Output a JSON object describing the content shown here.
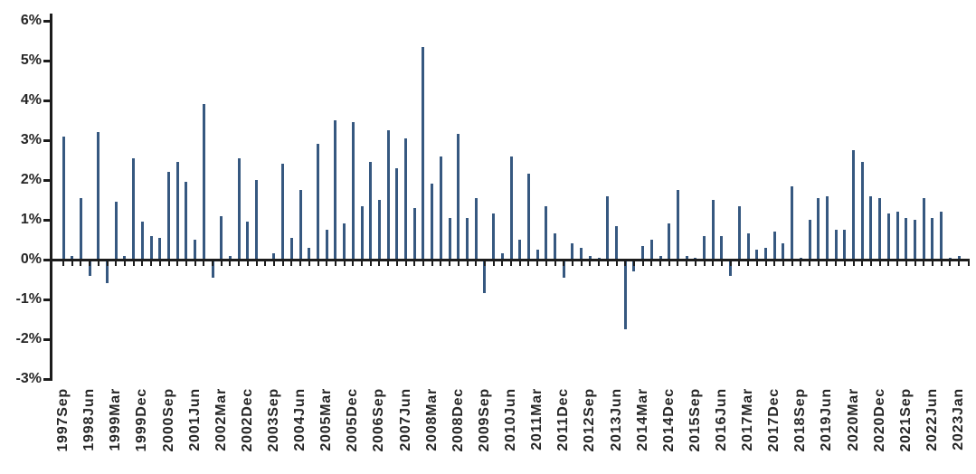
{
  "chart_data": {
    "type": "bar",
    "title": "",
    "xlabel": "",
    "ylabel": "",
    "ylim": [
      -3,
      6
    ],
    "gridlines": false,
    "legend": null,
    "background": "#FFFFFF",
    "bar_color": "#365880",
    "axis_color": "#1C1C1C",
    "text_color": "#262626",
    "y_tick_values": [
      6,
      5,
      4,
      3,
      2,
      1,
      0,
      -1,
      -2,
      -3
    ],
    "y_tick_labels": [
      "6%",
      "5%",
      "4%",
      "3%",
      "2%",
      "1%",
      "0%",
      "-1%",
      "-2%",
      "-3%"
    ],
    "x_label_every_n": 3,
    "visible_x_labels": [
      "1997Sep",
      "1998Jun",
      "1999Mar",
      "1999Dec",
      "2000Sep",
      "2001Jun",
      "2002Mar",
      "2002Dec",
      "2003Sep",
      "2004Jun",
      "2005Mar",
      "2005Dec",
      "2006Sep",
      "2007Jun",
      "2008Mar",
      "2008Dec",
      "2009Sep",
      "2010Jun",
      "2011Mar",
      "2011Dec",
      "2012Sep",
      "2013Jun",
      "2014Mar",
      "2014Dec",
      "2015Sep",
      "2016Jun",
      "2017Mar",
      "2017Dec",
      "2018Sep",
      "2019Jun",
      "2020Mar",
      "2020Dec",
      "2021Sep",
      "2022Jun",
      "2023Jan"
    ],
    "periods": [
      "1997Sep",
      "1997Dec",
      "1998Mar",
      "1998Jun",
      "1998Sep",
      "1998Dec",
      "1999Mar",
      "1999Jun",
      "1999Sep",
      "1999Dec",
      "2000Mar",
      "2000Jun",
      "2000Sep",
      "2000Dec",
      "2001Mar",
      "2001Jun",
      "2001Sep",
      "2001Dec",
      "2002Mar",
      "2002Jun",
      "2002Sep",
      "2002Dec",
      "2003Mar",
      "2003Jun",
      "2003Sep",
      "2003Dec",
      "2004Mar",
      "2004Jun",
      "2004Sep",
      "2004Dec",
      "2005Mar",
      "2005Jun",
      "2005Sep",
      "2005Dec",
      "2006Mar",
      "2006Jun",
      "2006Sep",
      "2006Dec",
      "2007Mar",
      "2007Jun",
      "2007Sep",
      "2007Dec",
      "2008Mar",
      "2008Jun",
      "2008Sep",
      "2008Dec",
      "2009Mar",
      "2009Jun",
      "2009Sep",
      "2009Dec",
      "2010Mar",
      "2010Jun",
      "2010Sep",
      "2010Dec",
      "2011Mar",
      "2011Jun",
      "2011Sep",
      "2011Dec",
      "2012Mar",
      "2012Jun",
      "2012Sep",
      "2012Dec",
      "2013Mar",
      "2013Jun",
      "2013Sep",
      "2013Dec",
      "2014Mar",
      "2014Jun",
      "2014Sep",
      "2014Dec",
      "2015Mar",
      "2015Jun",
      "2015Sep",
      "2015Dec",
      "2016Mar",
      "2016Jun",
      "2016Sep",
      "2016Dec",
      "2017Mar",
      "2017Jun",
      "2017Sep",
      "2017Dec",
      "2018Mar",
      "2018Jun",
      "2018Sep",
      "2018Dec",
      "2019Mar",
      "2019Jun",
      "2019Sep",
      "2019Dec",
      "2020Mar",
      "2020Jun",
      "2020Sep",
      "2020Dec",
      "2021Mar",
      "2021Jun",
      "2021Sep",
      "2021Dec",
      "2022Mar",
      "2022Jun",
      "2022Sep",
      "2022Dec",
      "2023Jan"
    ],
    "values": [
      3.1,
      0.1,
      1.55,
      -0.4,
      3.2,
      -0.6,
      1.45,
      0.1,
      2.55,
      0.95,
      0.6,
      0.55,
      2.2,
      2.45,
      1.95,
      0.5,
      3.9,
      -0.45,
      1.1,
      0.1,
      2.55,
      0.95,
      2.0,
      0.0,
      0.15,
      2.4,
      0.55,
      1.75,
      0.3,
      2.9,
      0.75,
      3.5,
      0.9,
      3.45,
      1.35,
      2.45,
      1.5,
      3.25,
      2.3,
      3.05,
      1.3,
      5.35,
      1.9,
      2.6,
      1.05,
      3.15,
      1.05,
      1.55,
      -0.85,
      1.15,
      0.15,
      2.6,
      0.5,
      2.15,
      0.25,
      1.35,
      0.65,
      -0.45,
      0.4,
      0.3,
      0.1,
      0.05,
      1.6,
      0.85,
      -1.75,
      -0.3,
      0.35,
      0.5,
      0.1,
      0.9,
      1.75,
      0.1,
      0.05,
      0.6,
      1.5,
      0.6,
      -0.4,
      1.35,
      0.65,
      0.25,
      0.3,
      0.7,
      0.4,
      1.85,
      0.05,
      1.0,
      1.55,
      1.6,
      0.75,
      0.75,
      2.75,
      2.45,
      1.6,
      1.55,
      1.15,
      1.2,
      1.05,
      1.0,
      1.55,
      1.05,
      1.2,
      0.05,
      0.1
    ]
  }
}
